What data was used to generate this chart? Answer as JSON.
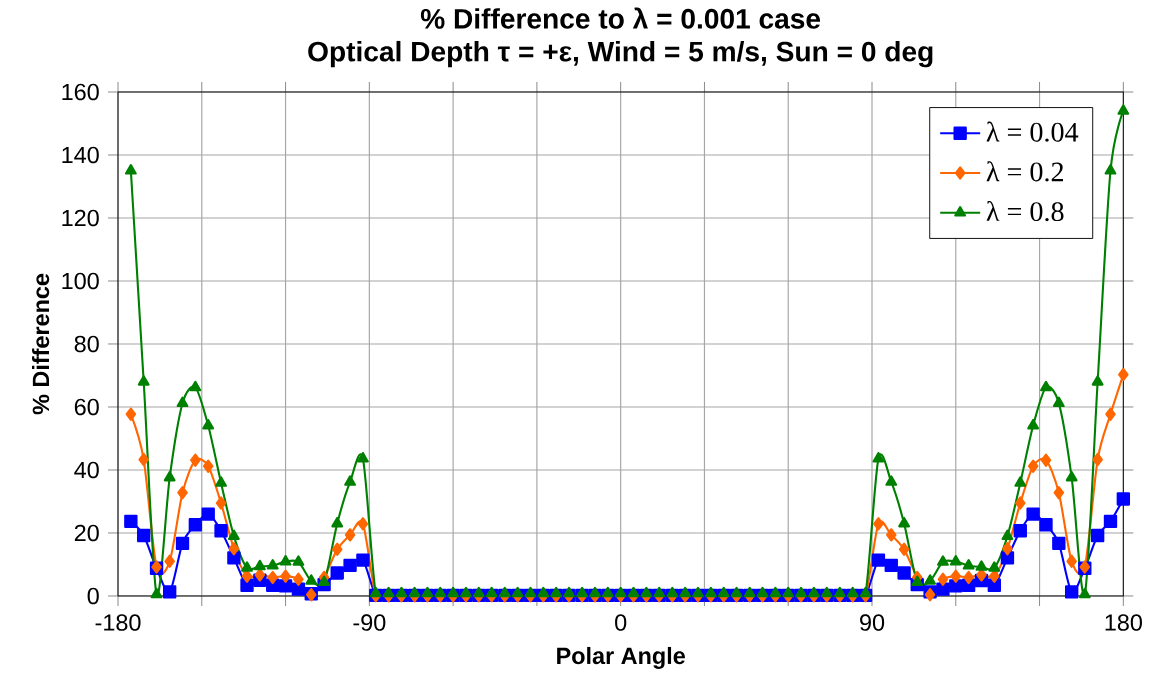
{
  "chart_data": {
    "type": "line",
    "title": "% Difference to λ = 0.001 case",
    "subtitle": "Optical Depth τ = +ε, Wind = 5 m/s, Sun = 0 deg",
    "xlabel": "Polar Angle",
    "ylabel": "% Difference",
    "x": [
      -175.4,
      -170.8,
      -166.2,
      -161.5,
      -156.9,
      -152.3,
      -147.7,
      -143.1,
      -138.5,
      -133.8,
      -129.2,
      -124.6,
      -120.0,
      -115.4,
      -110.8,
      -106.2,
      -101.5,
      -96.9,
      -92.3,
      -87.7,
      -83.1,
      -78.5,
      -73.8,
      -69.2,
      -64.6,
      -60.0,
      -55.4,
      -50.8,
      -46.2,
      -41.5,
      -36.9,
      -32.3,
      -27.7,
      -23.1,
      -18.5,
      -13.8,
      -9.2,
      -4.6,
      0,
      4.6,
      9.2,
      13.8,
      18.5,
      23.1,
      27.7,
      32.3,
      36.9,
      41.5,
      46.2,
      50.8,
      55.4,
      60.0,
      64.6,
      69.2,
      73.8,
      78.5,
      83.1,
      87.7,
      92.3,
      96.9,
      101.5,
      106.2,
      110.8,
      115.4,
      120.0,
      124.6,
      129.2,
      133.8,
      138.5,
      143.1,
      147.7,
      152.3,
      156.9,
      161.5,
      166.2,
      170.8,
      175.4,
      180
    ],
    "series": [
      {
        "name": "λ = 0.04",
        "color": "#0000ff",
        "marker": "square",
        "values": [
          23.7,
          19.2,
          8.8,
          1.3,
          16.7,
          22.6,
          26.0,
          20.7,
          12.1,
          3.4,
          5.0,
          3.4,
          3.2,
          2.2,
          0.7,
          3.6,
          7.3,
          9.7,
          11.4,
          0.2,
          0.2,
          0.2,
          0.2,
          0.2,
          0.2,
          0.2,
          0.2,
          0.2,
          0.2,
          0.2,
          0.2,
          0.2,
          0.2,
          0.2,
          0.2,
          0.2,
          0.2,
          0.2,
          0.2,
          0.2,
          0.2,
          0.2,
          0.2,
          0.2,
          0.2,
          0.2,
          0.2,
          0.2,
          0.2,
          0.2,
          0.2,
          0.2,
          0.2,
          0.2,
          0.2,
          0.2,
          0.2,
          0.2,
          11.4,
          9.7,
          7.3,
          3.6,
          1.3,
          2.2,
          3.2,
          3.4,
          4.9,
          3.4,
          12.1,
          20.7,
          26.0,
          22.6,
          16.7,
          1.3,
          8.8,
          19.2,
          23.7,
          30.8
        ]
      },
      {
        "name": "λ = 0.2",
        "color": "#ff6600",
        "marker": "diamond",
        "values": [
          57.7,
          43.3,
          9.2,
          11.0,
          32.8,
          43.1,
          41.2,
          29.5,
          15.0,
          6.3,
          6.7,
          5.9,
          6.3,
          5.3,
          0.4,
          5.9,
          14.8,
          19.4,
          22.9,
          0.1,
          0.1,
          0.1,
          0.1,
          0.1,
          0.1,
          0.1,
          0.1,
          0.1,
          0.1,
          0.1,
          0.1,
          0.1,
          0.1,
          0.1,
          0.1,
          0.1,
          0.1,
          0.1,
          0.1,
          0.1,
          0.1,
          0.1,
          0.1,
          0.1,
          0.1,
          0.1,
          0.1,
          0.1,
          0.1,
          0.1,
          0.1,
          0.1,
          0.1,
          0.1,
          0.1,
          0.1,
          0.1,
          0.1,
          22.9,
          19.4,
          14.8,
          5.9,
          0.4,
          5.3,
          6.3,
          5.9,
          6.7,
          6.3,
          15.0,
          29.5,
          41.2,
          43.1,
          32.8,
          11.0,
          9.2,
          43.3,
          57.7,
          70.3
        ]
      },
      {
        "name": "λ = 0.8",
        "color": "#008000",
        "marker": "triangle",
        "values": [
          135,
          68,
          0.5,
          37.6,
          61.2,
          66.2,
          54.1,
          35.9,
          19.0,
          8.9,
          9.4,
          9.6,
          10.9,
          10.8,
          4.8,
          4.4,
          23.0,
          36.2,
          43.6,
          0.8,
          0.8,
          0.8,
          0.8,
          0.8,
          0.8,
          0.8,
          0.8,
          0.8,
          0.8,
          0.8,
          0.8,
          0.8,
          0.8,
          0.8,
          0.8,
          0.8,
          0.8,
          0.8,
          0.8,
          0.8,
          0.8,
          0.8,
          0.8,
          0.8,
          0.8,
          0.8,
          0.8,
          0.8,
          0.8,
          0.8,
          0.8,
          0.8,
          0.8,
          0.8,
          0.8,
          0.8,
          0.8,
          0.8,
          43.6,
          36.2,
          23.0,
          4.4,
          4.8,
          10.8,
          10.9,
          9.6,
          9.2,
          8.9,
          19.0,
          35.9,
          54.1,
          66.2,
          61.2,
          37.6,
          0.5,
          68,
          135,
          154
        ]
      }
    ],
    "xlim": [
      -180,
      180
    ],
    "xticks": [
      -180,
      {
        "value": -150,
        "label": null
      },
      {
        "value": -120,
        "label": null
      },
      -90,
      {
        "value": -60,
        "label": null
      },
      {
        "value": -30,
        "label": null
      },
      0,
      {
        "value": 30,
        "label": null
      },
      {
        "value": 60,
        "label": null
      },
      90,
      {
        "value": 120,
        "label": null
      },
      {
        "value": 150,
        "label": null
      },
      180
    ],
    "ylim": [
      0,
      160
    ],
    "yticks": [
      0,
      20,
      40,
      60,
      80,
      100,
      120,
      140,
      160
    ],
    "grid": true,
    "legend": "top right"
  }
}
